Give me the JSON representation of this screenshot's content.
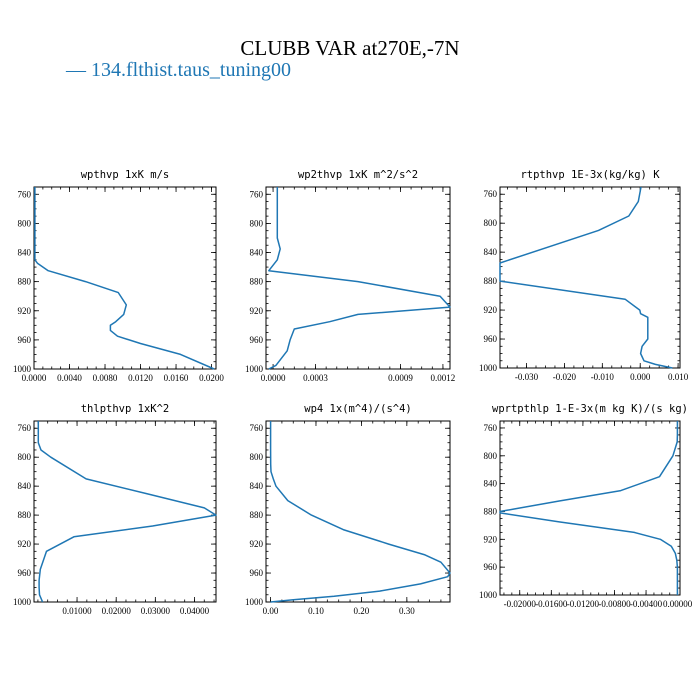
{
  "title": "CLUBB VAR at270E,-7N",
  "legend": {
    "label": "134.flthist.taus_tuning00",
    "symbol": "— "
  },
  "series_color": "#1f77b4",
  "chart_data": [
    {
      "type": "line",
      "title": "wpthvp   1xK m/s",
      "x_ticks": [
        "0.0000",
        "0.0040",
        "0.0080",
        "0.0120",
        "0.0160",
        "0.0200"
      ],
      "y_ticks": [
        "760",
        "800",
        "840",
        "880",
        "920",
        "960",
        "1000"
      ],
      "xlim": [
        0,
        0.0205
      ],
      "ylim": [
        750,
        1000
      ],
      "y_inverted": true,
      "series": [
        {
          "x": [
            0.0001,
            0.0001,
            0.0001,
            0.0001,
            0.0001,
            0.0001,
            0.0001,
            0.0001,
            0.0004,
            0.0016,
            0.0058,
            0.0095,
            0.0104,
            0.0101,
            0.0092,
            0.0086,
            0.0086,
            0.0094,
            0.012,
            0.0165,
            0.0203
          ],
          "y": [
            750,
            770,
            790,
            810,
            825,
            840,
            845,
            850,
            855,
            865,
            880,
            895,
            912,
            925,
            935,
            940,
            947,
            955,
            965,
            980,
            1000
          ]
        }
      ]
    },
    {
      "type": "line",
      "title": "wp2thvp   1xK m^2/s^2",
      "x_ticks": [
        "0.0000",
        "0.0003",
        "0.0009",
        "0.0012"
      ],
      "x_tick_values": [
        0.0,
        0.0003,
        0.0009,
        0.0012
      ],
      "y_ticks": [
        "760",
        "800",
        "840",
        "880",
        "920",
        "960",
        "1000"
      ],
      "xlim": [
        -5e-05,
        0.00125
      ],
      "ylim": [
        750,
        1000
      ],
      "y_inverted": true,
      "series": [
        {
          "x": [
            3e-05,
            3e-05,
            3e-05,
            3e-05,
            5e-05,
            3e-05,
            -3e-05,
            0.0006,
            0.00118,
            0.00125,
            0.0006,
            0.0004,
            0.00015,
            0.00012,
            0.0001,
            6e-05,
            2e-05,
            -3e-05
          ],
          "y": [
            750,
            770,
            800,
            820,
            835,
            850,
            865,
            880,
            900,
            915,
            925,
            935,
            945,
            960,
            975,
            985,
            995,
            1000
          ]
        }
      ]
    },
    {
      "type": "line",
      "title": "rtpthvp   1E-3x(kg/kg) K",
      "x_ticks": [
        "-0.030",
        "-0.020",
        "-0.010",
        "0.000",
        "0.010"
      ],
      "x_tick_values": [
        -0.03,
        -0.02,
        -0.01,
        0.0,
        0.01
      ],
      "y_ticks": [
        "760",
        "800",
        "840",
        "880",
        "920",
        "960",
        "1000"
      ],
      "xlim": [
        -0.037,
        0.0105
      ],
      "ylim": [
        750,
        1000
      ],
      "y_inverted": true,
      "series": [
        {
          "x": [
            0.0002,
            -0.0005,
            -0.003,
            -0.011,
            -0.037,
            -0.037,
            -0.004,
            -0.0001,
            0.0001,
            0.002,
            0.002,
            0.0005,
            0.0001,
            0.001,
            0.004,
            0.0085
          ],
          "y": [
            750,
            770,
            790,
            810,
            855,
            880,
            905,
            920,
            925,
            930,
            960,
            970,
            980,
            990,
            995,
            1000
          ]
        }
      ]
    },
    {
      "type": "line",
      "title": "thlpthvp   1xK^2",
      "x_ticks": [
        "0.01000",
        "0.02000",
        "0.03000",
        "0.04000"
      ],
      "x_tick_values": [
        0.01,
        0.02,
        0.03,
        0.04
      ],
      "y_ticks": [
        "760",
        "800",
        "840",
        "880",
        "920",
        "960",
        "1000"
      ],
      "xlim": [
        -0.001,
        0.0455
      ],
      "ylim": [
        750,
        1000
      ],
      "y_inverted": true,
      "series": [
        {
          "x": [
            0.0001,
            0.0001,
            0.0001,
            0.0001,
            0.0008,
            0.0033,
            0.0123,
            0.0275,
            0.0425,
            0.0455,
            0.0293,
            0.0092,
            0.0022,
            0.0006,
            0.0004,
            0.0003,
            0.0003,
            0.0004,
            0.0012
          ],
          "y": [
            750,
            760,
            770,
            780,
            790,
            800,
            830,
            850,
            870,
            880,
            895,
            910,
            930,
            955,
            965,
            970,
            980,
            990,
            1000
          ]
        }
      ]
    },
    {
      "type": "line",
      "title": "wp4   1x(m^4)/(s^4)",
      "x_ticks": [
        "0.00",
        "0.10",
        "0.20",
        "0.30"
      ],
      "x_tick_values": [
        0.0,
        0.1,
        0.2,
        0.3
      ],
      "y_ticks": [
        "760",
        "800",
        "840",
        "880",
        "920",
        "960",
        "1000"
      ],
      "xlim": [
        -0.01,
        0.395
      ],
      "ylim": [
        750,
        1000
      ],
      "y_inverted": true,
      "series": [
        {
          "x": [
            0.0001,
            0.0001,
            0.0002,
            0.0003,
            0.001,
            0.006,
            0.012,
            0.038,
            0.09,
            0.16,
            0.26,
            0.34,
            0.375,
            0.395,
            0.39,
            0.33,
            0.24,
            0.14,
            0.05,
            0.0
          ],
          "y": [
            750,
            770,
            790,
            810,
            820,
            830,
            840,
            860,
            880,
            900,
            920,
            935,
            945,
            960,
            965,
            975,
            985,
            992,
            997,
            1000
          ]
        }
      ]
    },
    {
      "type": "line",
      "title": "wprtpthlp   1-E-3x(m kg K)/(s kg)",
      "x_ticks": [
        "-0.02000",
        "-0.01600",
        "-0.01200",
        "-0.00800",
        "-0.00400",
        "0.00000"
      ],
      "x_tick_values": [
        -0.02,
        -0.016,
        -0.012,
        -0.008,
        -0.004,
        0.0
      ],
      "y_ticks": [
        "760",
        "800",
        "840",
        "880",
        "920",
        "960",
        "1000"
      ],
      "xlim": [
        -0.0225,
        0.0003
      ],
      "ylim": [
        750,
        1000
      ],
      "y_inverted": true,
      "series": [
        {
          "x": [
            -3e-05,
            -3e-05,
            -3e-05,
            -5e-05,
            -0.0006,
            -0.0023,
            -0.0072,
            -0.015,
            -0.0225,
            -0.0225,
            -0.015,
            -0.0055,
            -0.0022,
            -0.0008,
            -0.0003,
            -0.0001,
            -3e-05,
            -3e-05
          ],
          "y": [
            750,
            760,
            770,
            780,
            800,
            830,
            850,
            865,
            880,
            882,
            895,
            910,
            920,
            930,
            940,
            950,
            960,
            1000
          ]
        }
      ]
    }
  ]
}
